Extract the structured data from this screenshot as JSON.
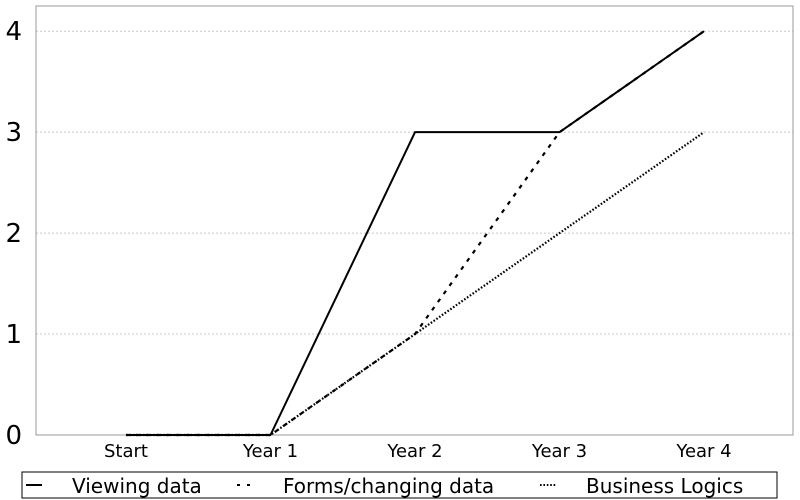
{
  "chart_data": {
    "type": "line",
    "categories": [
      "Start",
      "Year 1",
      "Year 2",
      "Year 3",
      "Year 4"
    ],
    "series": [
      {
        "name": "Viewing data",
        "values": [
          0,
          0,
          3,
          3,
          4
        ],
        "dash": "solid"
      },
      {
        "name": "Forms/changing data",
        "values": [
          0,
          0,
          1,
          3,
          4
        ],
        "dash": "dashed"
      },
      {
        "name": "Business Logics",
        "values": [
          0,
          0,
          1,
          2,
          3
        ],
        "dash": "dotted"
      }
    ],
    "y_ticks": [
      "0",
      "1",
      "2",
      "3",
      "4"
    ],
    "ylim": [
      0,
      4.25
    ],
    "grid": true,
    "legend_position": "bottom"
  }
}
